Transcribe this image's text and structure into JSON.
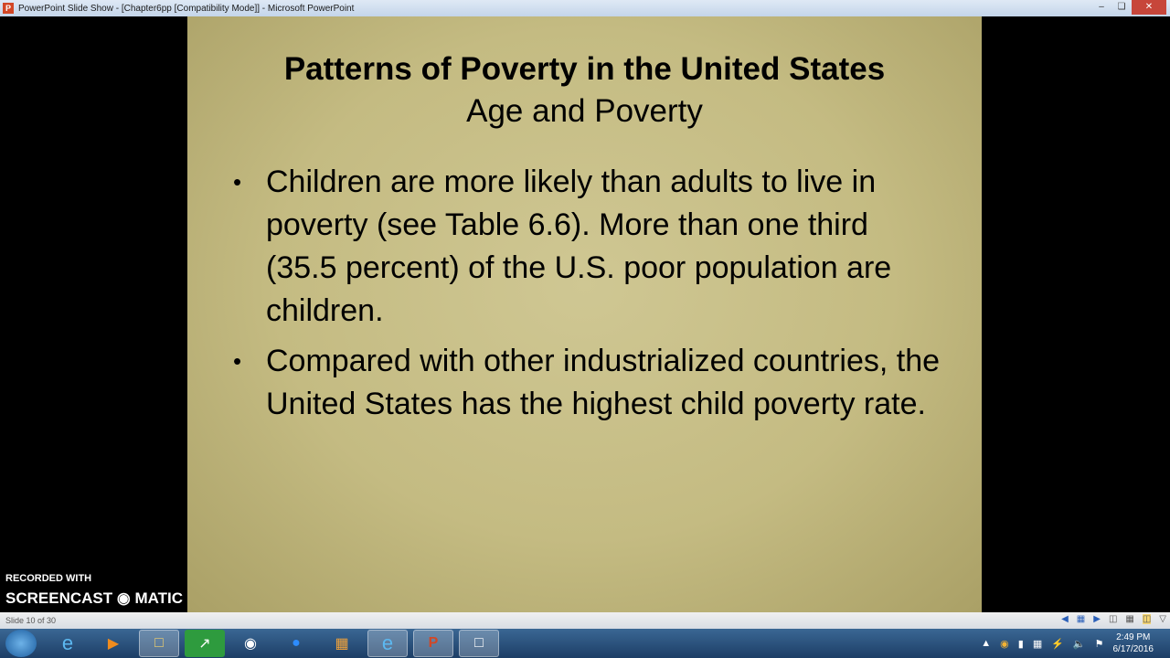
{
  "window": {
    "title": "PowerPoint Slide Show - [Chapter6pp [Compatibility Mode]] - Microsoft PowerPoint",
    "app_icon": "P",
    "controls": [
      "minimize",
      "restore",
      "close"
    ]
  },
  "slide": {
    "title": "Patterns of Poverty in the United States",
    "subtitle": "Age and Poverty",
    "bullets": [
      "Children are more likely than adults to live in poverty (see Table 6.6). More than one third (35.5 percent) of the U.S. poor population are children.",
      "Compared with other industrialized countries, the United States has the highest child poverty rate."
    ],
    "bullet_char": "•",
    "background_color": "#c9c08a"
  },
  "statusbar": {
    "slide_indicator": "Slide 10 of 30",
    "icons": [
      "previous-icon",
      "menu-icon",
      "next-icon",
      "normal-view-icon",
      "slide-sorter-icon",
      "reading-view-icon",
      "slide-show-icon"
    ]
  },
  "taskbar": {
    "apps": [
      "internet-explorer",
      "media-player",
      "file-explorer",
      "app-green",
      "wifi-app",
      "zoom",
      "apps-grid",
      "internet-explorer",
      "powerpoint",
      "snipping-tool"
    ],
    "active": "powerpoint"
  },
  "tray": {
    "time": "2:49 PM",
    "date": "6/17/2016"
  },
  "watermark": {
    "line1": "RECORDED WITH",
    "line2": "SCREENCAST",
    "line3": "MATIC"
  }
}
